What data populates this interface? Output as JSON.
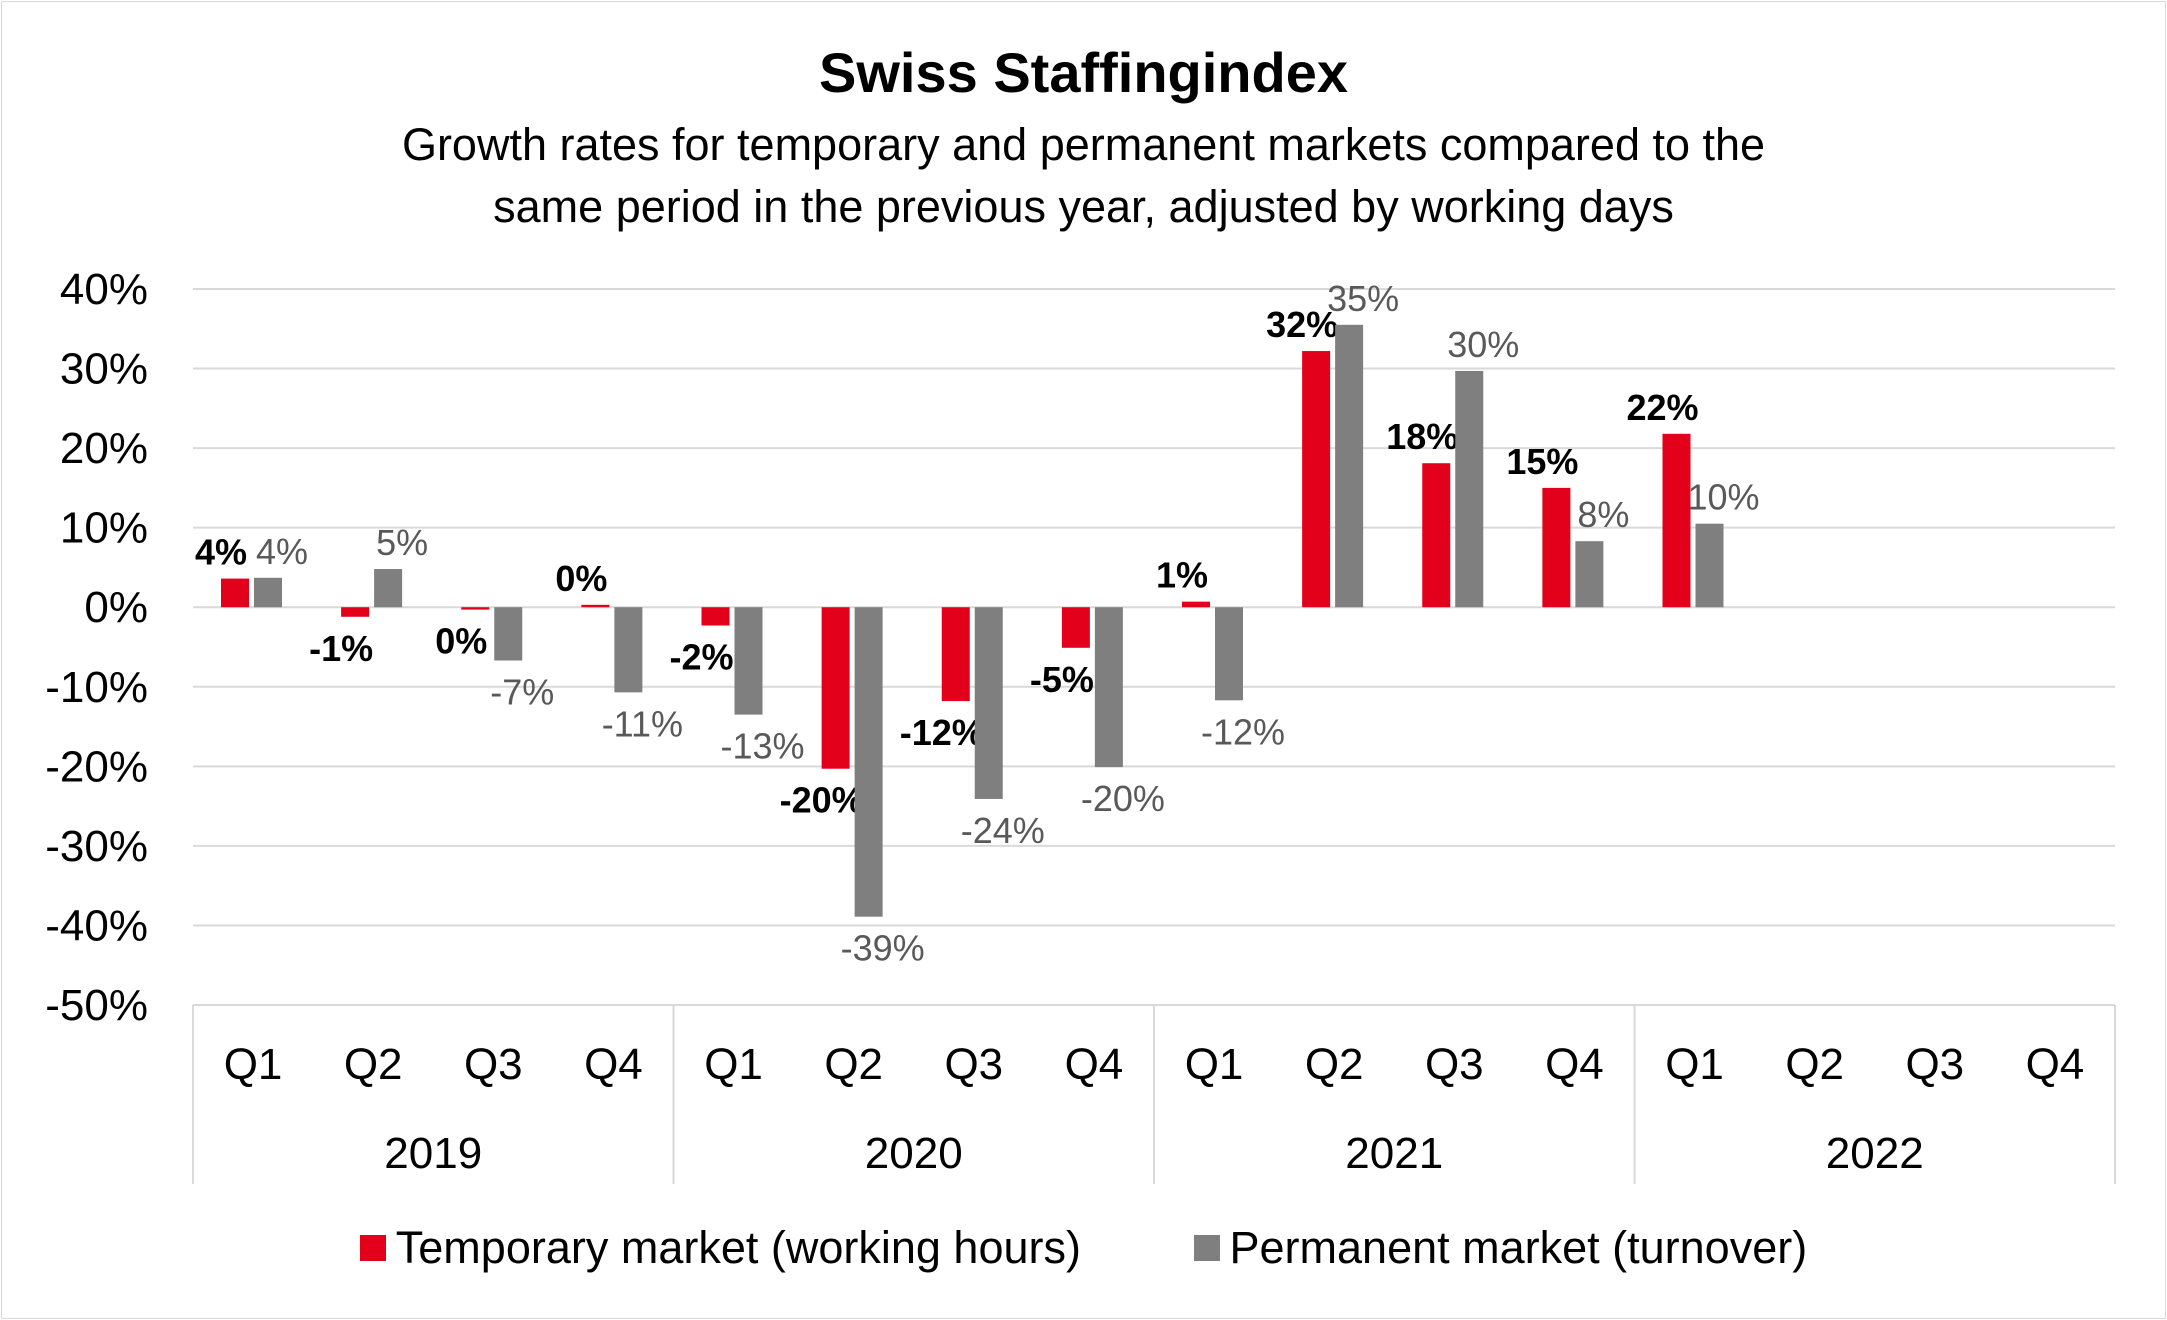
{
  "chart_data": {
    "type": "bar",
    "title": "Swiss Staffingindex",
    "subtitle": "Growth rates for temporary and permanent markets compared to the same period in the previous year, adjusted by working days",
    "subtitle_lines": [
      "Growth rates for temporary and permanent markets compared to the",
      "same period in the previous year, adjusted by working days"
    ],
    "xlabel": "",
    "ylabel": "",
    "ylim": [
      -50,
      40
    ],
    "yticks": [
      40,
      30,
      20,
      10,
      0,
      -10,
      -20,
      -30,
      -40,
      -50
    ],
    "ytick_labels": [
      "40%",
      "30%",
      "20%",
      "10%",
      "0%",
      "-10%",
      "-20%",
      "-30%",
      "-40%",
      "-50%"
    ],
    "grid": true,
    "legend_position": "bottom",
    "categories": [
      "Q1",
      "Q2",
      "Q3",
      "Q4",
      "Q1",
      "Q2",
      "Q3",
      "Q4",
      "Q1",
      "Q2",
      "Q3",
      "Q4",
      "Q1",
      "Q2",
      "Q3",
      "Q4"
    ],
    "years": [
      "2019",
      "2020",
      "2021",
      "2022"
    ],
    "series": [
      {
        "name": "Temporary market (working hours)",
        "color": "#E2001A",
        "values": [
          3.6,
          -1.2,
          -0.3,
          0.3,
          -2.3,
          -20.3,
          -11.8,
          -5.1,
          0.7,
          32.2,
          18.1,
          15.0,
          21.8,
          null,
          null,
          null
        ],
        "labels": [
          "4%",
          "-1%",
          "0%",
          "0%",
          "-2%",
          "-20%",
          "-12%",
          "-5%",
          "1%",
          "32%",
          "18%",
          "15%",
          "22%",
          null,
          null,
          null
        ]
      },
      {
        "name": "Permanent market (turnover)",
        "color": "#7F7F7F",
        "values": [
          3.7,
          4.8,
          -6.7,
          -10.7,
          -13.5,
          -38.9,
          -24.1,
          -20.1,
          -11.7,
          35.5,
          29.7,
          8.3,
          10.5,
          null,
          null,
          null
        ],
        "labels": [
          "4%",
          "5%",
          "-7%",
          "-11%",
          "-13%",
          "-39%",
          "-24%",
          "-20%",
          "-12%",
          "35%",
          "30%",
          "8%",
          "10%",
          null,
          null,
          null
        ]
      }
    ]
  }
}
